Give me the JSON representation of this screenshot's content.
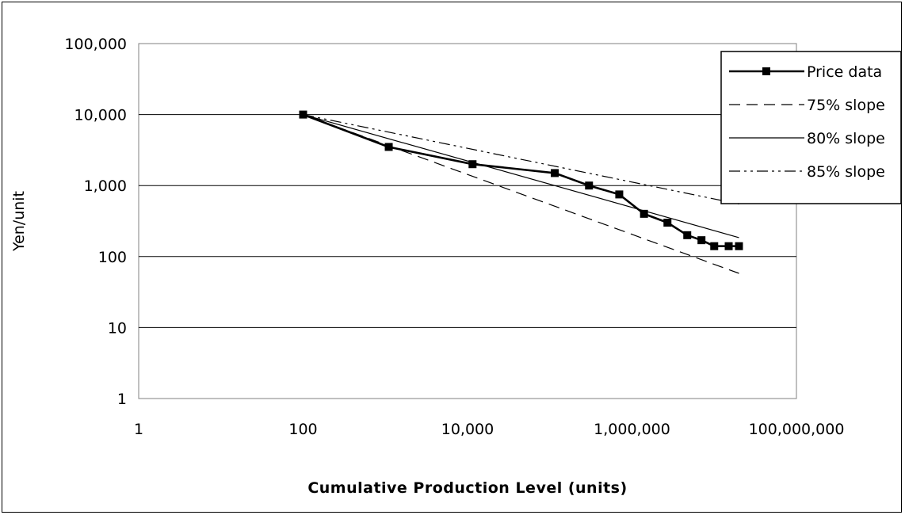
{
  "chart_data": {
    "type": "line",
    "x_scale": "log",
    "y_scale": "log",
    "xlim": [
      1,
      100000000
    ],
    "ylim": [
      1,
      100000
    ],
    "x_ticks": [
      1,
      100,
      10000,
      1000000,
      100000000
    ],
    "x_tick_labels": [
      "1",
      "100",
      "10,000",
      "1,000,000",
      "100,000,000"
    ],
    "y_ticks": [
      1,
      10,
      100,
      1000,
      10000,
      100000
    ],
    "y_tick_labels": [
      "1",
      "10",
      "100",
      "1,000",
      "10,000",
      "100,000"
    ],
    "xlabel": "Cumulative Production Level (units)",
    "ylabel": "Yen/unit",
    "grid": "horizontal major gridlines",
    "legend_position": "top-right",
    "series": [
      {
        "name": "Price data",
        "style": "solid-bold-square-markers",
        "color": "#000000",
        "x": [
          100,
          1100,
          11500,
          115000,
          300000,
          700000,
          1400000,
          2700000,
          4700000,
          7000000,
          10000000,
          15000000,
          20000000
        ],
        "y": [
          10000,
          3500,
          2000,
          1500,
          1000,
          750,
          400,
          300,
          200,
          170,
          140,
          140,
          140
        ]
      },
      {
        "name": "75% slope",
        "style": "dashed",
        "color": "#000000",
        "x": [
          100,
          20000000
        ],
        "y": [
          10000,
          58
        ]
      },
      {
        "name": "80% slope",
        "style": "solid-thin",
        "color": "#000000",
        "x": [
          100,
          20000000
        ],
        "y": [
          10000,
          185
        ]
      },
      {
        "name": "85% slope",
        "style": "dash-dot-dot",
        "color": "#000000",
        "x": [
          100,
          20000000
        ],
        "y": [
          10000,
          550
        ]
      }
    ]
  }
}
